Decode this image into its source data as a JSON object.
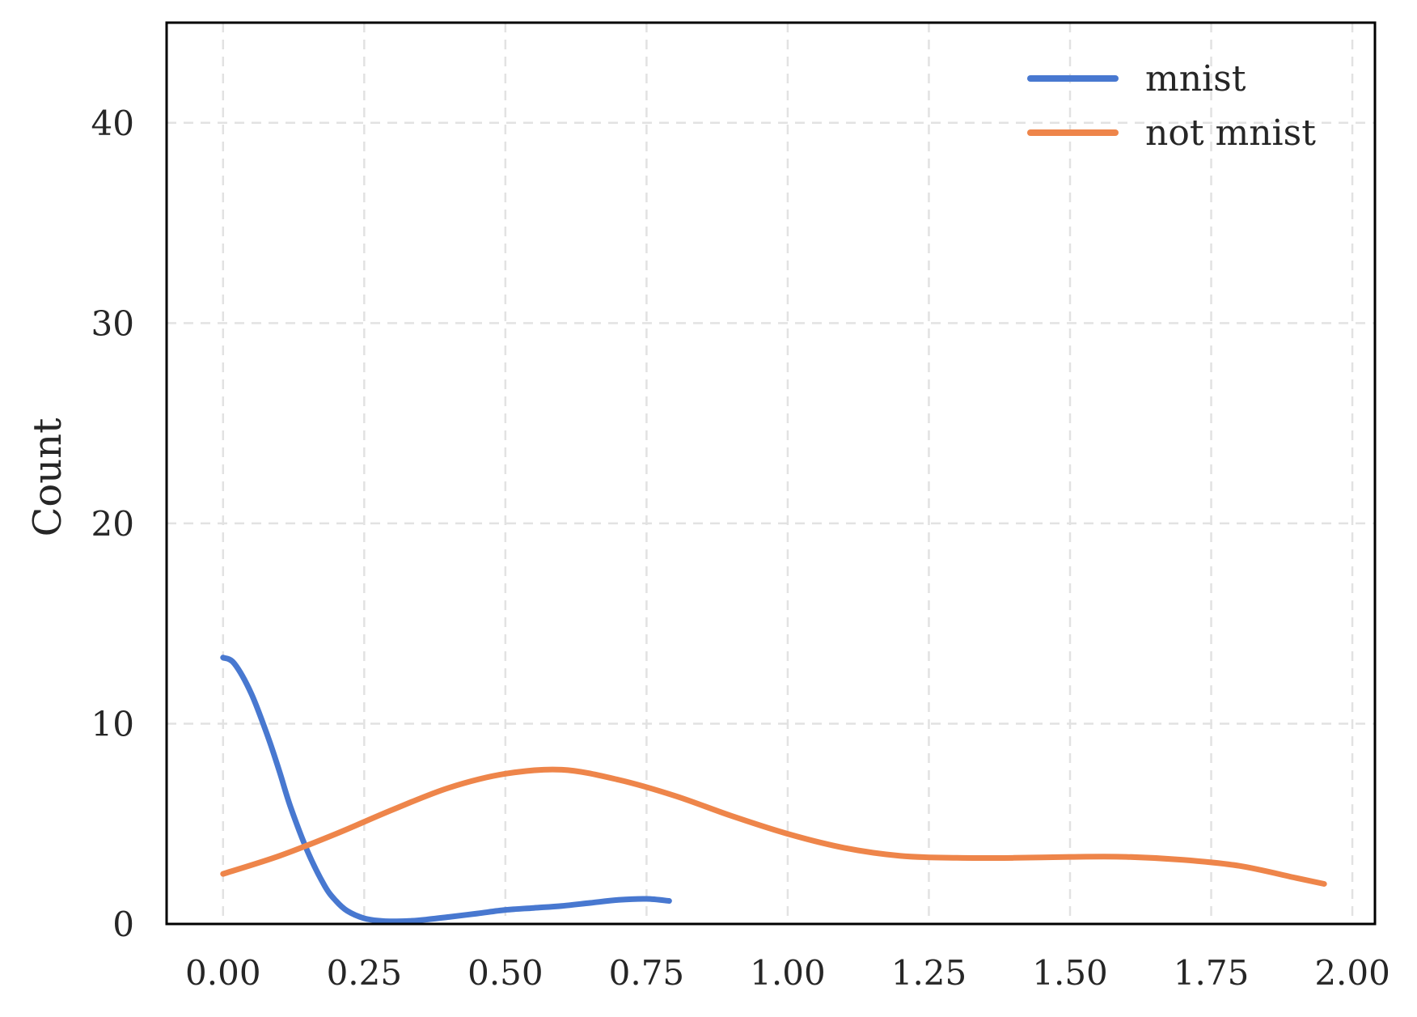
{
  "chart_data": {
    "type": "line",
    "title": "",
    "xlabel": "",
    "ylabel": "Count",
    "xlim": [
      -0.1,
      2.04
    ],
    "ylim": [
      0,
      45
    ],
    "xticks": [
      0.0,
      0.25,
      0.5,
      0.75,
      1.0,
      1.25,
      1.5,
      1.75,
      2.0
    ],
    "xtick_labels": [
      "0.00",
      "0.25",
      "0.50",
      "0.75",
      "1.00",
      "1.25",
      "1.50",
      "1.75",
      "2.00"
    ],
    "yticks": [
      0,
      10,
      20,
      30,
      40
    ],
    "ytick_labels": [
      "0",
      "10",
      "20",
      "30",
      "40"
    ],
    "grid": true,
    "legend_position": "top-right",
    "series": [
      {
        "name": "mnist",
        "color": "#4878d0",
        "x": [
          0.0,
          0.02,
          0.05,
          0.08,
          0.1,
          0.12,
          0.15,
          0.18,
          0.2,
          0.22,
          0.25,
          0.28,
          0.3,
          0.33,
          0.36,
          0.4,
          0.45,
          0.5,
          0.55,
          0.6,
          0.65,
          0.7,
          0.75,
          0.79
        ],
        "y": [
          13.3,
          13.0,
          11.5,
          9.3,
          7.6,
          5.8,
          3.6,
          1.9,
          1.15,
          0.65,
          0.28,
          0.15,
          0.13,
          0.15,
          0.22,
          0.35,
          0.52,
          0.7,
          0.8,
          0.9,
          1.05,
          1.2,
          1.25,
          1.15
        ]
      },
      {
        "name": "not mnist",
        "color": "#ee854a",
        "x": [
          0.0,
          0.1,
          0.2,
          0.3,
          0.4,
          0.5,
          0.6,
          0.7,
          0.8,
          0.9,
          1.0,
          1.1,
          1.2,
          1.3,
          1.4,
          1.5,
          1.6,
          1.7,
          1.8,
          1.9,
          1.95
        ],
        "y": [
          2.5,
          3.4,
          4.5,
          5.7,
          6.8,
          7.5,
          7.7,
          7.2,
          6.4,
          5.4,
          4.5,
          3.8,
          3.4,
          3.3,
          3.3,
          3.35,
          3.35,
          3.2,
          2.9,
          2.3,
          2.0
        ]
      }
    ]
  }
}
